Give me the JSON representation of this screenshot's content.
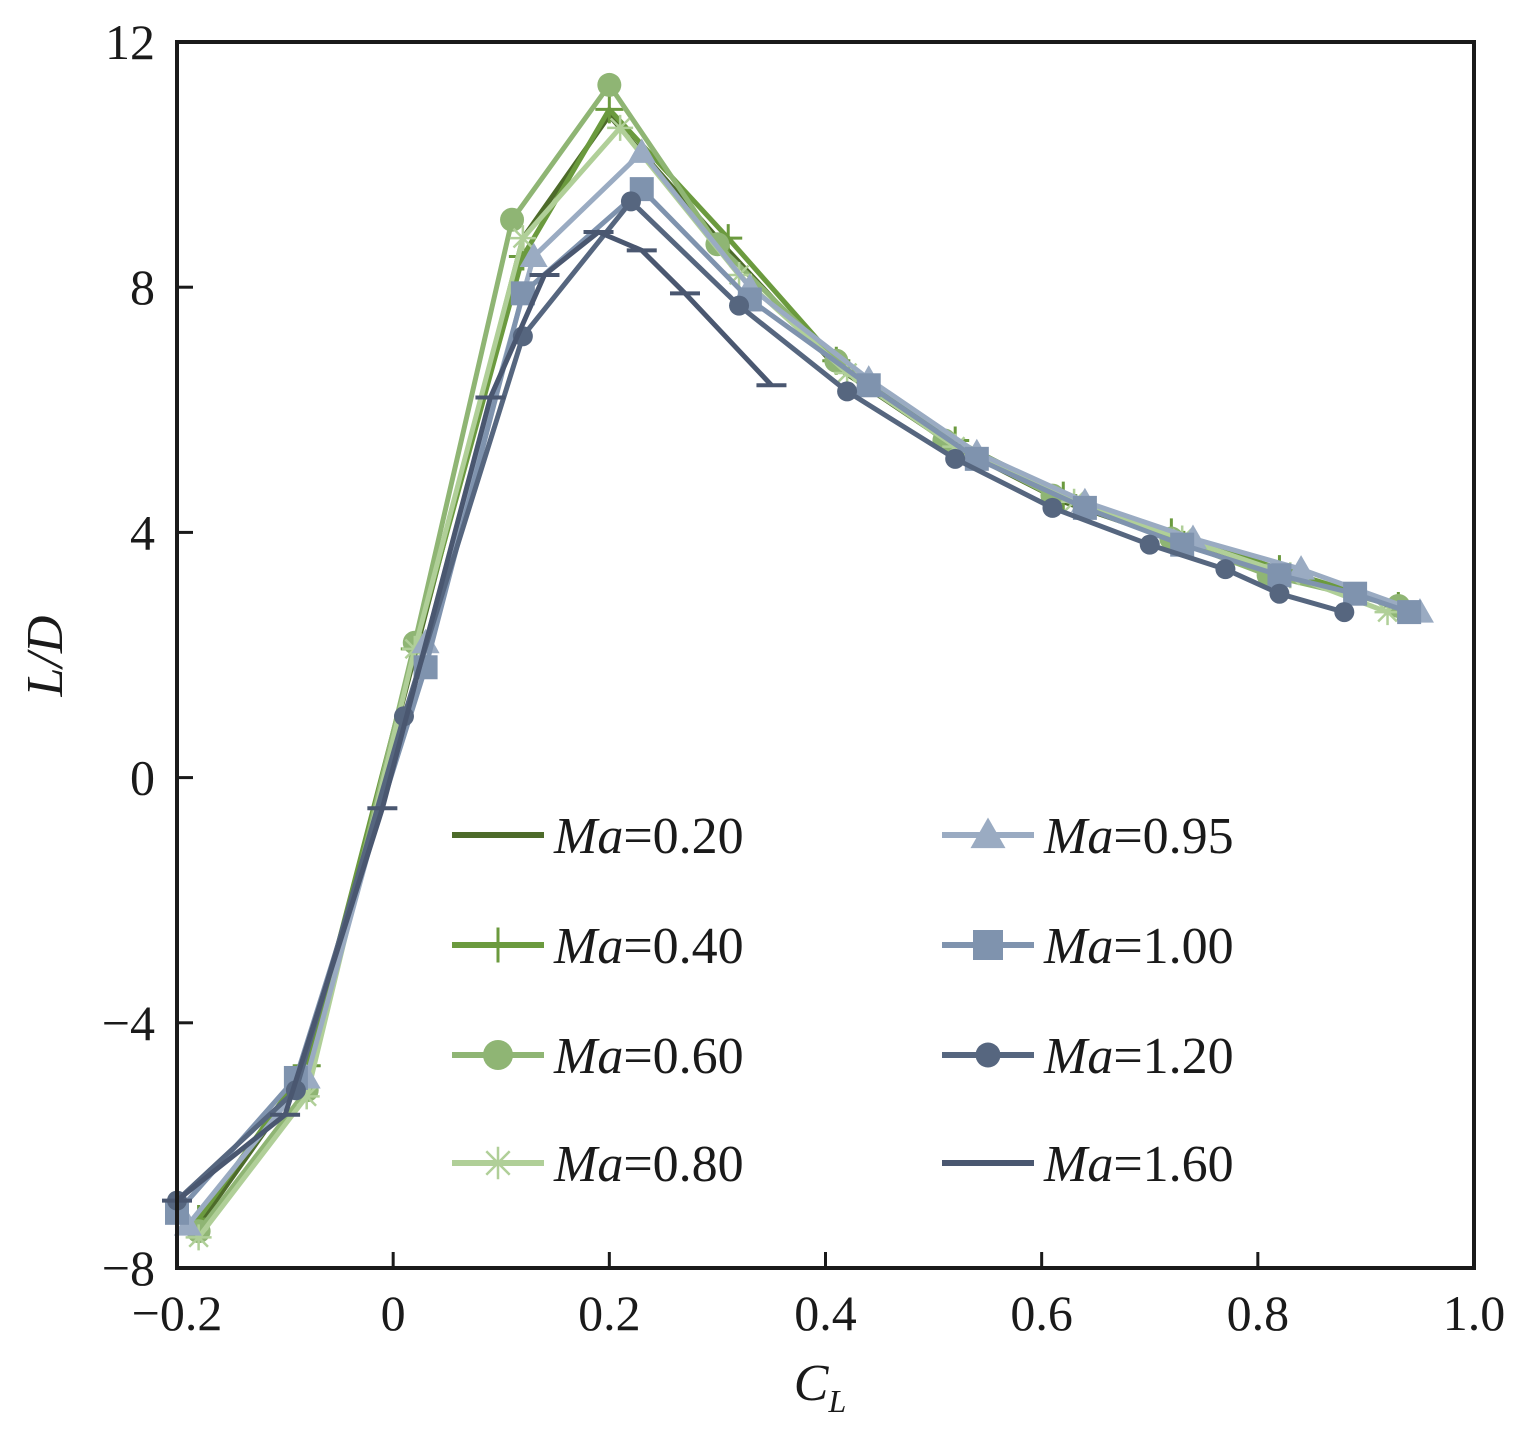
{
  "chart_data": {
    "type": "line",
    "title": "",
    "xlabel": "C",
    "xlabel_sub": "L",
    "ylabel": "L/D",
    "xlim": [
      -0.2,
      1.0
    ],
    "ylim": [
      -8,
      12
    ],
    "xticks": [
      {
        "value": -0.2,
        "label": "−0.2"
      },
      {
        "value": 0,
        "label": "0"
      },
      {
        "value": 0.2,
        "label": "0.2"
      },
      {
        "value": 0.4,
        "label": "0.4"
      },
      {
        "value": 0.6,
        "label": "0.6"
      },
      {
        "value": 0.8,
        "label": "0.8"
      },
      {
        "value": 1.0,
        "label": "1.0"
      }
    ],
    "yticks": [
      {
        "value": -8,
        "label": "−8"
      },
      {
        "value": -4,
        "label": "−4"
      },
      {
        "value": 0,
        "label": "0"
      },
      {
        "value": 4,
        "label": "4"
      },
      {
        "value": 8,
        "label": "8"
      },
      {
        "value": 12,
        "label": "12"
      }
    ],
    "legend_position": "lower-center, two columns",
    "series": [
      {
        "name": "Ma=0.20",
        "mach": "0.20",
        "color": "#4d6b2a",
        "marker": "none",
        "x": [
          -0.18,
          -0.08,
          0.02,
          0.12,
          0.2,
          0.31,
          0.41,
          0.52,
          0.62,
          0.72,
          0.82,
          0.93
        ],
        "y": [
          -7.3,
          -4.8,
          2.0,
          8.8,
          10.8,
          8.6,
          6.7,
          5.4,
          4.5,
          3.9,
          3.3,
          2.8
        ]
      },
      {
        "name": "Ma=0.40",
        "mach": "0.40",
        "color": "#6b9a3e",
        "marker": "plus",
        "x": [
          -0.18,
          -0.08,
          0.02,
          0.12,
          0.2,
          0.31,
          0.41,
          0.52,
          0.62,
          0.72,
          0.82,
          0.93
        ],
        "y": [
          -7.2,
          -4.7,
          2.1,
          8.5,
          10.9,
          8.8,
          6.8,
          5.5,
          4.6,
          4.0,
          3.4,
          2.8
        ]
      },
      {
        "name": "Ma=0.60",
        "mach": "0.60",
        "color": "#8fb574",
        "marker": "circle",
        "x": [
          -0.18,
          -0.08,
          0.02,
          0.11,
          0.2,
          0.3,
          0.41,
          0.51,
          0.61,
          0.72,
          0.81,
          0.93
        ],
        "y": [
          -7.4,
          -5.1,
          2.2,
          9.1,
          11.3,
          8.7,
          6.8,
          5.5,
          4.6,
          3.9,
          3.3,
          2.8
        ]
      },
      {
        "name": "Ma=0.80",
        "mach": "0.80",
        "color": "#b0cf98",
        "marker": "asterisk",
        "x": [
          -0.18,
          -0.08,
          0.02,
          0.12,
          0.21,
          0.32,
          0.42,
          0.52,
          0.63,
          0.73,
          0.83,
          0.92
        ],
        "y": [
          -7.5,
          -5.2,
          2.1,
          8.8,
          10.6,
          8.2,
          6.6,
          5.4,
          4.5,
          3.9,
          3.3,
          2.7
        ]
      },
      {
        "name": "Ma=0.95",
        "mach": "0.95",
        "color": "#9aabc2",
        "marker": "triangle",
        "x": [
          -0.19,
          -0.08,
          0.03,
          0.13,
          0.23,
          0.33,
          0.44,
          0.54,
          0.64,
          0.74,
          0.84,
          0.95
        ],
        "y": [
          -7.3,
          -4.9,
          2.2,
          8.5,
          10.2,
          8.0,
          6.5,
          5.3,
          4.5,
          3.9,
          3.4,
          2.7
        ]
      },
      {
        "name": "Ma=1.00",
        "mach": "1.00",
        "color": "#7f93ae",
        "marker": "square",
        "x": [
          -0.2,
          -0.09,
          0.03,
          0.12,
          0.23,
          0.33,
          0.44,
          0.54,
          0.64,
          0.73,
          0.82,
          0.89,
          0.94
        ],
        "y": [
          -7.1,
          -4.9,
          1.8,
          7.9,
          9.6,
          7.8,
          6.4,
          5.2,
          4.4,
          3.8,
          3.3,
          3.0,
          2.7
        ]
      },
      {
        "name": "Ma=1.20",
        "mach": "1.20",
        "color": "#56667f",
        "marker": "dot",
        "x": [
          -0.2,
          -0.09,
          0.01,
          0.12,
          0.22,
          0.32,
          0.42,
          0.52,
          0.61,
          0.7,
          0.77,
          0.82,
          0.88
        ],
        "y": [
          -6.9,
          -5.1,
          1.0,
          7.2,
          9.4,
          7.7,
          6.3,
          5.2,
          4.4,
          3.8,
          3.4,
          3.0,
          2.7
        ]
      },
      {
        "name": "Ma=1.60",
        "mach": "1.60",
        "color": "#4a5770",
        "marker": "hbar",
        "x": [
          -0.2,
          -0.1,
          -0.01,
          0.09,
          0.14,
          0.19,
          0.23,
          0.27,
          0.35
        ],
        "y": [
          -6.9,
          -5.5,
          -0.5,
          6.2,
          8.2,
          8.9,
          8.6,
          7.9,
          6.4
        ]
      }
    ]
  }
}
